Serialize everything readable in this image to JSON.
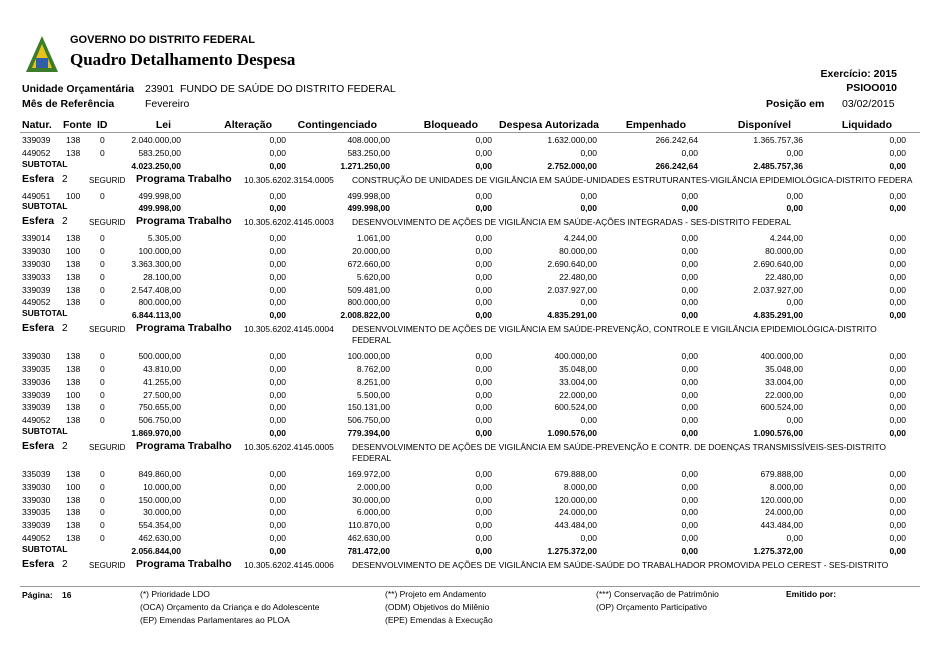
{
  "header": {
    "government": "GOVERNO DO DISTRITO FEDERAL",
    "title": "Quadro Detalhamento Despesa",
    "exercise": "Exercício: 2015",
    "code": "PSIOO010",
    "unit_label": "Unidade Orçamentária",
    "unit_code": "23901",
    "unit_name": "FUNDO DE SAÚDE DO DISTRITO FEDERAL",
    "month_label": "Mês de Referência",
    "month": "Fevereiro",
    "position_label": "Posição em",
    "position_date": "03/02/2015"
  },
  "columns": [
    "Natur.",
    "Fonte",
    "ID",
    "Lei",
    "Alteração",
    "Contingenciado",
    "Bloqueado",
    "Despesa Autorizada",
    "Empenhado",
    "Disponível",
    "Liquidado"
  ],
  "labels": {
    "subtotal": "SUBTOTAL",
    "esfera": "Esfera",
    "programa": "Programa Trabalho"
  },
  "blocks": [
    {
      "rows": [
        [
          "339039",
          "138",
          "0",
          "2.040.000,00",
          "0,00",
          "408.000,00",
          "0,00",
          "1.632.000,00",
          "266.242,64",
          "1.365.757,36",
          "0,00"
        ],
        [
          "449052",
          "138",
          "0",
          "583.250,00",
          "0,00",
          "583.250,00",
          "0,00",
          "0,00",
          "0,00",
          "0,00",
          "0,00"
        ]
      ],
      "subtotal": [
        "4.023.250,00",
        "0,00",
        "1.271.250,00",
        "0,00",
        "2.752.000,00",
        "266.242,64",
        "2.485.757,36",
        "0,00"
      ]
    },
    {
      "esfera": "2",
      "sphere": "SEGURID",
      "program": "10.305.6202.3154.0005",
      "description": [
        "CONSTRUÇÃO DE UNIDADES DE VIGILÂNCIA EM SAÚDE-UNIDADES ESTRUTURANTES-VIGILÂNCIA EPIDEMIOLÓGICA-DISTRITO FEDERA"
      ],
      "rows": [
        [
          "449051",
          "100",
          "0",
          "499.998,00",
          "0,00",
          "499.998,00",
          "0,00",
          "0,00",
          "0,00",
          "0,00",
          "0,00"
        ]
      ],
      "subtotal": [
        "499.998,00",
        "0,00",
        "499.998,00",
        "0,00",
        "0,00",
        "0,00",
        "0,00",
        "0,00"
      ]
    },
    {
      "esfera": "2",
      "sphere": "SEGURID",
      "program": "10.305.6202.4145.0003",
      "description": [
        "DESENVOLVIMENTO DE AÇÕES DE VIGILÂNCIA EM SAÚDE-AÇÕES INTEGRADAS - SES-DISTRITO FEDERAL"
      ],
      "rows": [
        [
          "339014",
          "138",
          "0",
          "5.305,00",
          "0,00",
          "1.061,00",
          "0,00",
          "4.244,00",
          "0,00",
          "4.244,00",
          "0,00"
        ],
        [
          "339030",
          "100",
          "0",
          "100.000,00",
          "0,00",
          "20.000,00",
          "0,00",
          "80.000,00",
          "0,00",
          "80.000,00",
          "0,00"
        ],
        [
          "339030",
          "138",
          "0",
          "3.363.300,00",
          "0,00",
          "672.660,00",
          "0,00",
          "2.690.640,00",
          "0,00",
          "2.690.640,00",
          "0,00"
        ],
        [
          "339033",
          "138",
          "0",
          "28.100,00",
          "0,00",
          "5.620,00",
          "0,00",
          "22.480,00",
          "0,00",
          "22.480,00",
          "0,00"
        ],
        [
          "339039",
          "138",
          "0",
          "2.547.408,00",
          "0,00",
          "509.481,00",
          "0,00",
          "2.037.927,00",
          "0,00",
          "2.037.927,00",
          "0,00"
        ],
        [
          "449052",
          "138",
          "0",
          "800.000,00",
          "0,00",
          "800.000,00",
          "0,00",
          "0,00",
          "0,00",
          "0,00",
          "0,00"
        ]
      ],
      "subtotal": [
        "6.844.113,00",
        "0,00",
        "2.008.822,00",
        "0,00",
        "4.835.291,00",
        "0,00",
        "4.835.291,00",
        "0,00"
      ]
    },
    {
      "esfera": "2",
      "sphere": "SEGURID",
      "program": "10.305.6202.4145.0004",
      "description": [
        "DESENVOLVIMENTO DE AÇÕES DE VIGILÂNCIA EM SAÚDE-PREVENÇÃO, CONTROLE E VIGILÂNCIA EPIDEMIOLÓGICA-DISTRITO",
        "FEDERAL"
      ],
      "rows": [
        [
          "339030",
          "138",
          "0",
          "500.000,00",
          "0,00",
          "100.000,00",
          "0,00",
          "400.000,00",
          "0,00",
          "400.000,00",
          "0,00"
        ],
        [
          "339035",
          "138",
          "0",
          "43.810,00",
          "0,00",
          "8.762,00",
          "0,00",
          "35.048,00",
          "0,00",
          "35.048,00",
          "0,00"
        ],
        [
          "339036",
          "138",
          "0",
          "41.255,00",
          "0,00",
          "8.251,00",
          "0,00",
          "33.004,00",
          "0,00",
          "33.004,00",
          "0,00"
        ],
        [
          "339039",
          "100",
          "0",
          "27.500,00",
          "0,00",
          "5.500,00",
          "0,00",
          "22.000,00",
          "0,00",
          "22.000,00",
          "0,00"
        ],
        [
          "339039",
          "138",
          "0",
          "750.655,00",
          "0,00",
          "150.131,00",
          "0,00",
          "600.524,00",
          "0,00",
          "600.524,00",
          "0,00"
        ],
        [
          "449052",
          "138",
          "0",
          "506.750,00",
          "0,00",
          "506.750,00",
          "0,00",
          "0,00",
          "0,00",
          "0,00",
          "0,00"
        ]
      ],
      "subtotal": [
        "1.869.970,00",
        "0,00",
        "779.394,00",
        "0,00",
        "1.090.576,00",
        "0,00",
        "1.090.576,00",
        "0,00"
      ]
    },
    {
      "esfera": "2",
      "sphere": "SEGURID",
      "program": "10.305.6202.4145.0005",
      "description": [
        "DESENVOLVIMENTO DE AÇÕES DE VIGILÂNCIA EM SAÚDE-PREVENÇÃO E CONTR. DE DOENÇAS TRANSMISSÍVEIS-SES-DISTRITO",
        "FEDERAL"
      ],
      "rows": [
        [
          "335039",
          "138",
          "0",
          "849.860,00",
          "0,00",
          "169.972,00",
          "0,00",
          "679.888,00",
          "0,00",
          "679.888,00",
          "0,00"
        ],
        [
          "339030",
          "100",
          "0",
          "10.000,00",
          "0,00",
          "2.000,00",
          "0,00",
          "8.000,00",
          "0,00",
          "8.000,00",
          "0,00"
        ],
        [
          "339030",
          "138",
          "0",
          "150.000,00",
          "0,00",
          "30.000,00",
          "0,00",
          "120.000,00",
          "0,00",
          "120.000,00",
          "0,00"
        ],
        [
          "339035",
          "138",
          "0",
          "30.000,00",
          "0,00",
          "6.000,00",
          "0,00",
          "24.000,00",
          "0,00",
          "24.000,00",
          "0,00"
        ],
        [
          "339039",
          "138",
          "0",
          "554.354,00",
          "0,00",
          "110.870,00",
          "0,00",
          "443.484,00",
          "0,00",
          "443.484,00",
          "0,00"
        ],
        [
          "449052",
          "138",
          "0",
          "462.630,00",
          "0,00",
          "462.630,00",
          "0,00",
          "0,00",
          "0,00",
          "0,00",
          "0,00"
        ]
      ],
      "subtotal": [
        "2.056.844,00",
        "0,00",
        "781.472,00",
        "0,00",
        "1.275.372,00",
        "0,00",
        "1.275.372,00",
        "0,00"
      ]
    },
    {
      "esfera": "2",
      "sphere": "SEGURID",
      "program": "10.305.6202.4145.0006",
      "description": [
        "DESENVOLVIMENTO DE AÇÕES DE VIGILÂNCIA EM SAÚDE-SAÚDE DO TRABALHADOR PROMOVIDA PELO CEREST - SES-DISTRITO"
      ]
    }
  ],
  "footer": {
    "page_label": "Página:",
    "page": "16",
    "notes": [
      [
        "(*) Prioridade LDO",
        "(OCA) Orçamento da Criança e do Adolescente",
        "(EP) Emendas Parlamentares ao PLOA"
      ],
      [
        "(**) Projeto em Andamento",
        "(ODM) Objetivos do Milênio",
        "(EPE) Emendas à Execução"
      ],
      [
        "(***) Conservação de Patrimônio",
        "(OP) Orçamento Participativo"
      ]
    ],
    "issued": "Emitido por:"
  }
}
